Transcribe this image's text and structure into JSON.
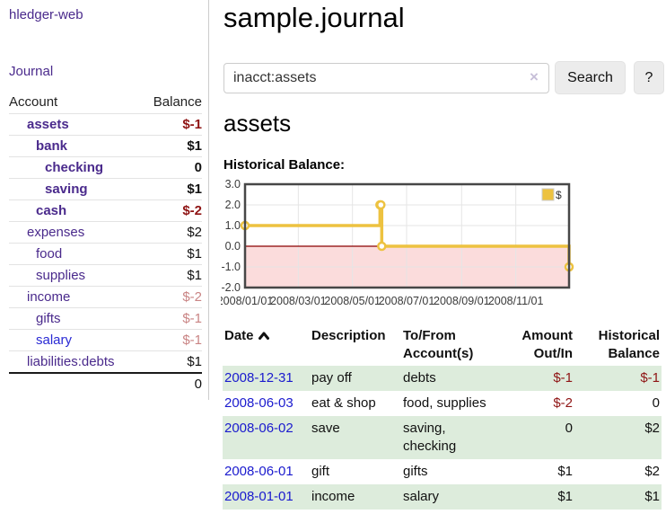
{
  "sidebar": {
    "app_title": "hledger-web",
    "journal_label": "Journal",
    "accounts_table": {
      "headers": {
        "account": "Account",
        "balance": "Balance"
      },
      "rows": [
        {
          "name": "assets",
          "balance": "$-1",
          "row_class": "bold",
          "name_class": "depth-1",
          "balance_class": "neg-strong"
        },
        {
          "name": "bank",
          "balance": "$1",
          "row_class": "bold",
          "name_class": "depth-2",
          "balance_class": ""
        },
        {
          "name": "checking",
          "balance": "0",
          "row_class": "bold",
          "name_class": "depth-3",
          "balance_class": ""
        },
        {
          "name": "saving",
          "balance": "$1",
          "row_class": "bold",
          "name_class": "depth-3",
          "balance_class": ""
        },
        {
          "name": "cash",
          "balance": "$-2",
          "row_class": "bold",
          "name_class": "depth-2",
          "balance_class": "neg-strong"
        },
        {
          "name": "expenses",
          "balance": "$2",
          "row_class": "",
          "name_class": "depth-1",
          "balance_class": ""
        },
        {
          "name": "food",
          "balance": "$1",
          "row_class": "",
          "name_class": "depth-2",
          "balance_class": ""
        },
        {
          "name": "supplies",
          "balance": "$1",
          "row_class": "",
          "name_class": "depth-2",
          "balance_class": ""
        },
        {
          "name": "income",
          "balance": "$-2",
          "row_class": "",
          "name_class": "depth-1",
          "balance_class": "neg-soft"
        },
        {
          "name": "gifts",
          "balance": "$-1",
          "row_class": "",
          "name_class": "depth-2",
          "balance_class": "neg-soft"
        },
        {
          "name": "salary",
          "balance": "$-1",
          "row_class": "blue-link",
          "name_class": "depth-2",
          "balance_class": "neg-soft"
        },
        {
          "name": "liabilities:debts",
          "balance": "$1",
          "row_class": "",
          "name_class": "depth-1",
          "balance_class": ""
        }
      ],
      "total": "0"
    }
  },
  "header": {
    "title": "sample.journal"
  },
  "search": {
    "query": "inacct:assets",
    "clear_icon_char": "×",
    "search_label": "Search",
    "help_label": "?"
  },
  "main": {
    "account_heading": "assets",
    "chart_label": "Historical Balance:"
  },
  "chart_data": {
    "type": "line",
    "title": "Historical Balance",
    "step": true,
    "x_range": [
      "2008-01-01",
      "2008-12-31"
    ],
    "ylim": [
      -2,
      3
    ],
    "yticks": [
      {
        "v": 3,
        "label": "3.0"
      },
      {
        "v": 2,
        "label": "2.0"
      },
      {
        "v": 1,
        "label": "1.0"
      },
      {
        "v": 0,
        "label": "0.0"
      },
      {
        "v": -1,
        "label": "-1.0"
      },
      {
        "v": -2,
        "label": "-2.0"
      }
    ],
    "xticks": [
      {
        "date": "2008-01-01",
        "label": "2008/01/01"
      },
      {
        "date": "2008-03-01",
        "label": "2008/03/01"
      },
      {
        "date": "2008-05-01",
        "label": "2008/05/01"
      },
      {
        "date": "2008-07-01",
        "label": "2008/07/01"
      },
      {
        "date": "2008-09-01",
        "label": "2008/09/01"
      },
      {
        "date": "2008-11-01",
        "label": "2008/11/01"
      }
    ],
    "series": [
      {
        "name": "$",
        "points": [
          [
            "2008-01-01",
            1
          ],
          [
            "2008-06-01",
            2
          ],
          [
            "2008-06-02",
            2
          ],
          [
            "2008-06-03",
            0
          ],
          [
            "2008-12-31",
            -1
          ]
        ]
      }
    ],
    "legend": {
      "position": "top-right",
      "label": "$"
    },
    "colors": {
      "line": "#edc240",
      "marker_fill": "#ffffff",
      "negative_region": "#fbdcdc",
      "zero_line": "#8b0000",
      "grid": "#e5e5e5",
      "border": "#474747",
      "tick_text": "#3a3a3a"
    }
  },
  "transactions_table": {
    "headers": {
      "date": "Date",
      "sort_icon": "chevron-up",
      "description": "Description",
      "accounts": "To/From\nAccount(s)",
      "amount": "Amount\nOut/In",
      "balance": "Historical\nBalance"
    },
    "rows": [
      {
        "date": "2008-12-31",
        "description": "pay off",
        "accounts": "debts",
        "amount": "$-1",
        "amount_class": "neg",
        "balance": "$-1",
        "balance_class": "neg",
        "row_class": "striped"
      },
      {
        "date": "2008-06-03",
        "description": "eat & shop",
        "accounts": "food, supplies",
        "amount": "$-2",
        "amount_class": "neg",
        "balance": "0",
        "balance_class": "",
        "row_class": ""
      },
      {
        "date": "2008-06-02",
        "description": "save",
        "accounts": "saving, checking",
        "amount": "0",
        "amount_class": "",
        "balance": "$2",
        "balance_class": "",
        "row_class": "striped"
      },
      {
        "date": "2008-06-01",
        "description": "gift",
        "accounts": "gifts",
        "amount": "$1",
        "amount_class": "",
        "balance": "$2",
        "balance_class": "",
        "row_class": ""
      },
      {
        "date": "2008-01-01",
        "description": "income",
        "accounts": "salary",
        "amount": "$1",
        "amount_class": "",
        "balance": "$1",
        "balance_class": "",
        "row_class": "striped"
      }
    ]
  },
  "colors": {
    "link_purple": "#4a2a8c",
    "link_blue": "#2a2ad4",
    "date_link_blue": "#1a1ace",
    "negative_strong": "#8f1414",
    "negative_soft": "#c98484",
    "stripe_green": "#ddecdc",
    "accent_gold": "#edc240"
  }
}
